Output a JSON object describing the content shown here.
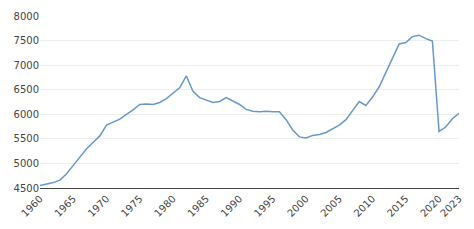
{
  "chart_data": {
    "type": "line",
    "x": [
      1960,
      1961,
      1962,
      1963,
      1964,
      1965,
      1966,
      1967,
      1968,
      1969,
      1970,
      1971,
      1972,
      1973,
      1974,
      1975,
      1976,
      1977,
      1978,
      1979,
      1980,
      1981,
      1982,
      1983,
      1984,
      1985,
      1986,
      1987,
      1988,
      1989,
      1990,
      1991,
      1992,
      1993,
      1994,
      1995,
      1996,
      1997,
      1998,
      1999,
      2000,
      2001,
      2002,
      2003,
      2004,
      2005,
      2006,
      2007,
      2008,
      2009,
      2010,
      2011,
      2012,
      2013,
      2014,
      2015,
      2016,
      2017,
      2018,
      2019,
      2020,
      2021,
      2022,
      2023
    ],
    "values": [
      4550,
      4575,
      4610,
      4660,
      4790,
      4960,
      5120,
      5300,
      5430,
      5560,
      5780,
      5840,
      5900,
      6000,
      6090,
      6200,
      6210,
      6200,
      6240,
      6320,
      6440,
      6540,
      6780,
      6470,
      6340,
      6290,
      6240,
      6260,
      6340,
      6270,
      6200,
      6100,
      6060,
      6050,
      6060,
      6050,
      6050,
      5890,
      5680,
      5540,
      5520,
      5570,
      5590,
      5630,
      5700,
      5780,
      5890,
      6080,
      6260,
      6180,
      6350,
      6560,
      6850,
      7160,
      7430,
      7460,
      7580,
      7610,
      7540,
      7490,
      5650,
      5740,
      5910,
      6020
    ],
    "color": "#6699CC",
    "xlim": [
      1960,
      2023
    ],
    "ylim": [
      4500,
      8000
    ],
    "xticks": [
      1960,
      1965,
      1970,
      1975,
      1980,
      1985,
      1990,
      1995,
      2000,
      2005,
      2010,
      2015,
      2020,
      2023
    ],
    "yticks": [
      4500,
      5000,
      5500,
      6000,
      6500,
      7000,
      7500,
      8000
    ],
    "grid": "y"
  }
}
